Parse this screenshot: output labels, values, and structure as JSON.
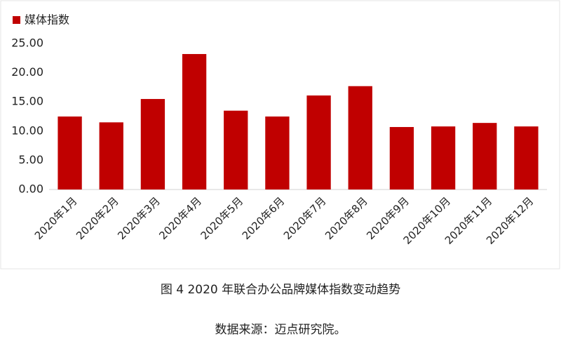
{
  "chart_data": {
    "type": "bar",
    "legend": "媒体指数",
    "caption": "图 4 2020 年联合办公品牌媒体指数变动趋势",
    "source": "数据来源：迈点研究院。",
    "categories": [
      "2020年1月",
      "2020年2月",
      "2020年3月",
      "2020年4月",
      "2020年5月",
      "2020年6月",
      "2020年7月",
      "2020年8月",
      "2020年9月",
      "2020年10月",
      "2020年11月",
      "2020年12月"
    ],
    "series": [
      {
        "name": "媒体指数",
        "color": "#c00000",
        "values": [
          12.5,
          11.5,
          15.5,
          23.2,
          13.5,
          12.5,
          16.1,
          17.7,
          10.7,
          10.8,
          11.4,
          10.8
        ]
      }
    ],
    "ylim": [
      0,
      25
    ],
    "yticks": [
      {
        "value": 0,
        "label": "0.00"
      },
      {
        "value": 5,
        "label": "5.00"
      },
      {
        "value": 10,
        "label": "10.00"
      },
      {
        "value": 15,
        "label": "15.00"
      },
      {
        "value": 20,
        "label": "20.00"
      },
      {
        "value": 25,
        "label": "25.00"
      }
    ],
    "grid": false
  }
}
